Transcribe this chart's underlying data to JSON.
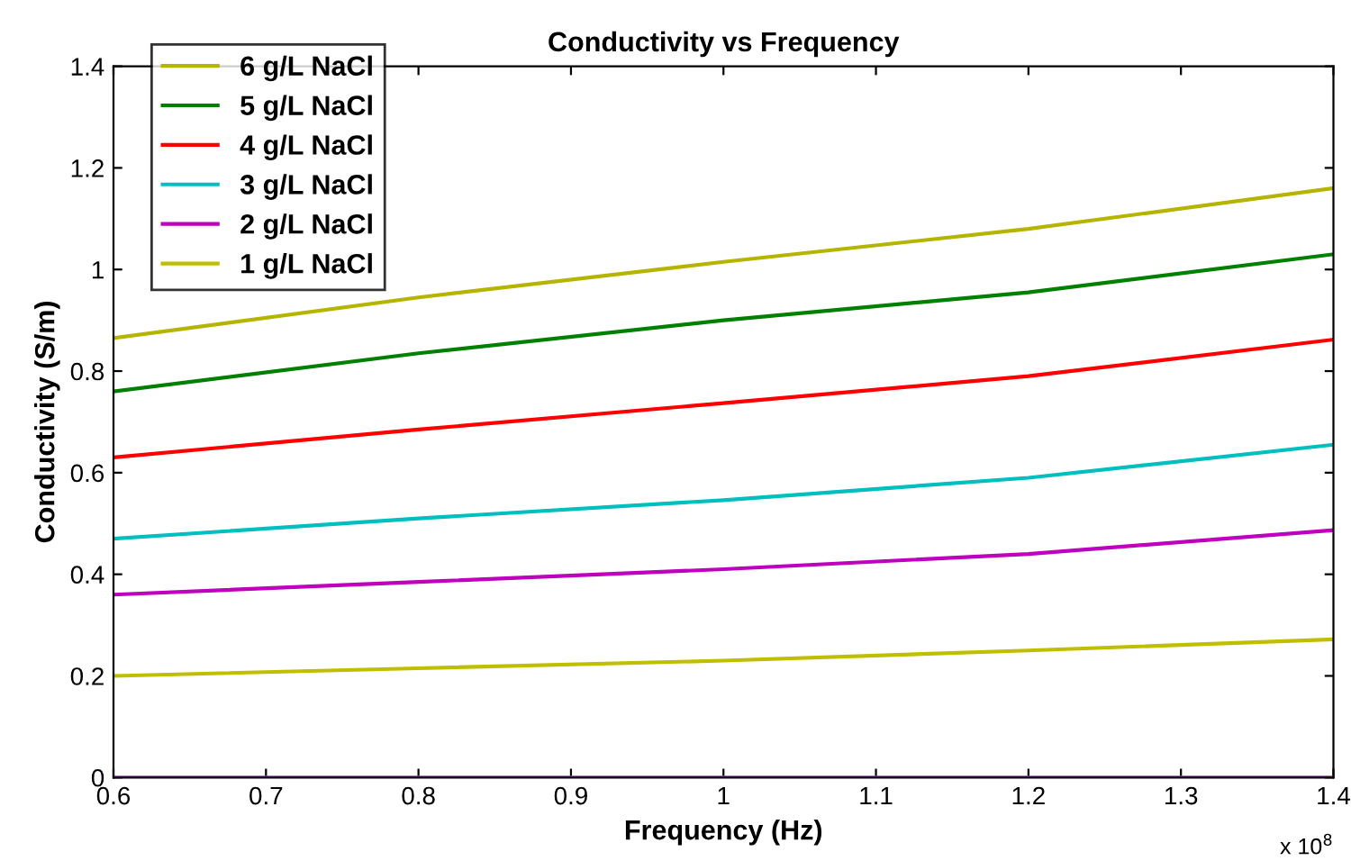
{
  "chart_data": {
    "type": "line",
    "title": "Conductivity vs Frequency",
    "xlabel": "Frequency (Hz)",
    "ylabel": "Conductivity (S/m)",
    "x": [
      0.6,
      0.8,
      1,
      1.2,
      1.4
    ],
    "series": [
      {
        "name": "6 g/L NaCl",
        "color": "#b5b500",
        "values": [
          0.865,
          0.945,
          1.015,
          1.08,
          1.16
        ]
      },
      {
        "name": "5 g/L NaCl",
        "color": "#008000",
        "values": [
          0.76,
          0.835,
          0.9,
          0.955,
          1.03
        ]
      },
      {
        "name": "4 g/L NaCl",
        "color": "#ff0000",
        "values": [
          0.63,
          0.685,
          0.737,
          0.79,
          0.862
        ]
      },
      {
        "name": "3 g/L NaCl",
        "color": "#00bfbf",
        "values": [
          0.47,
          0.51,
          0.546,
          0.59,
          0.655
        ]
      },
      {
        "name": "2 g/L NaCl",
        "color": "#bf00bf",
        "values": [
          0.36,
          0.385,
          0.41,
          0.44,
          0.487
        ]
      },
      {
        "name": "1 g/L NaCl",
        "color": "#bfbf00",
        "values": [
          0.2,
          0.215,
          0.23,
          0.25,
          0.272
        ]
      },
      {
        "color": "#ff00ff",
        "x": [
          0.6,
          1.4
        ],
        "values": [
          0,
          0
        ]
      }
    ],
    "xlim": [
      0.6,
      1.4
    ],
    "xticks": [
      0.6,
      0.7,
      0.8,
      0.9,
      1,
      1.1,
      1.2,
      1.3,
      1.4
    ],
    "ylim": [
      0,
      1.4
    ],
    "yticks": [
      0,
      0.2,
      0.4,
      0.6,
      0.8,
      1,
      1.2,
      1.4
    ],
    "annotations": [
      "x 10$^{8}$"
    ],
    "legend": "top left",
    "grid": false,
    "marker": "none",
    "line_style": "solid"
  }
}
